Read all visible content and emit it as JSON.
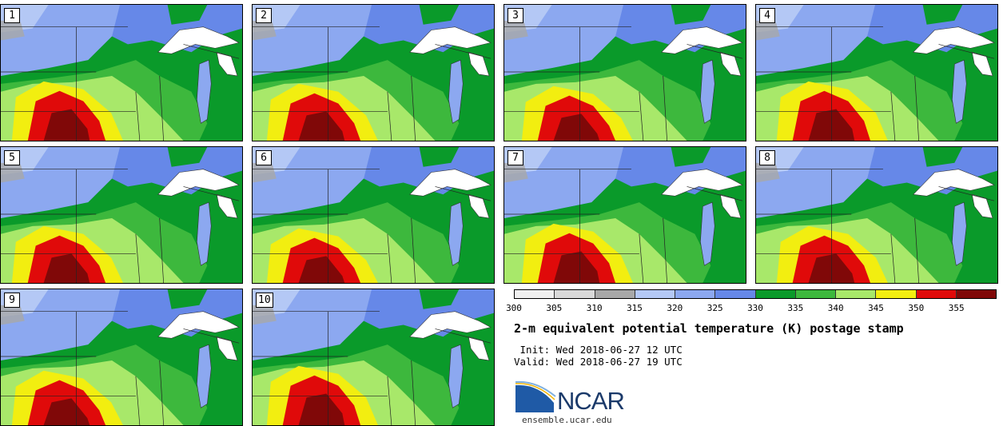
{
  "panels": [
    {
      "label": "1"
    },
    {
      "label": "2"
    },
    {
      "label": "3"
    },
    {
      "label": "4"
    },
    {
      "label": "5"
    },
    {
      "label": "6"
    },
    {
      "label": "7"
    },
    {
      "label": "8"
    },
    {
      "label": "9"
    },
    {
      "label": "10"
    }
  ],
  "colorbar": {
    "colors": [
      "#f0f0f0",
      "#d9d9d9",
      "#a8a8a8",
      "#b4c8f5",
      "#8ca8f0",
      "#6688e8",
      "#0a9a2a",
      "#3db83d",
      "#a8e86a",
      "#f2ee10",
      "#e00a0a",
      "#800808"
    ],
    "ticks": [
      "300",
      "305",
      "310",
      "315",
      "320",
      "325",
      "330",
      "335",
      "340",
      "345",
      "350",
      "355"
    ]
  },
  "title": "2-m equivalent potential temperature (K) postage stamp",
  "init_line": " Init: Wed 2018-06-27 12 UTC",
  "valid_line": "Valid: Wed 2018-06-27 19 UTC",
  "logo": {
    "text": "NCAR",
    "icon": "ncar-swoosh-icon"
  },
  "url": "ensemble.ucar.edu"
}
